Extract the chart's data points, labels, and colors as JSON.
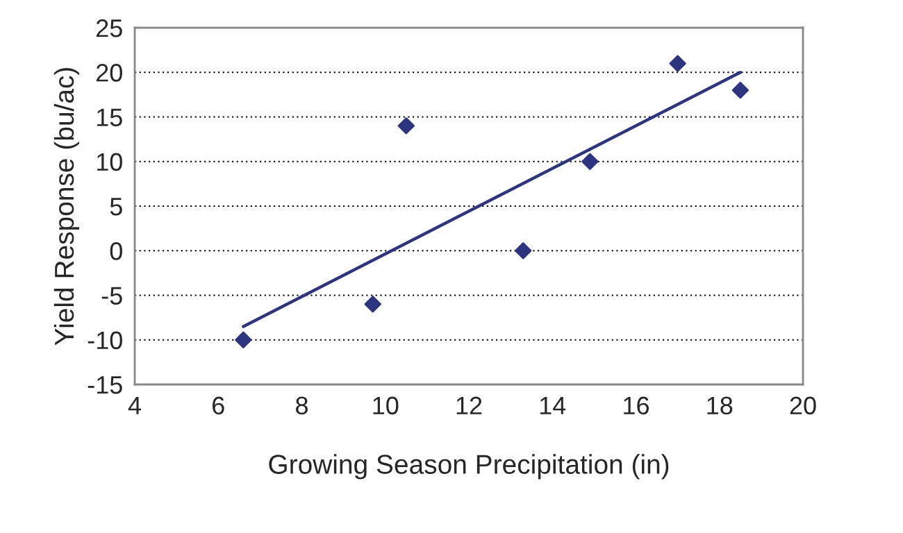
{
  "chart_data": {
    "type": "scatter",
    "xlabel": "Growing Season Precipitation (in)",
    "ylabel": "Yield Response (bu/ac)",
    "xlim": [
      4,
      20
    ],
    "xticks": [
      4,
      6,
      8,
      10,
      12,
      14,
      16,
      18,
      20
    ],
    "ylim": [
      -15,
      25
    ],
    "yticks": [
      -15,
      -10,
      -5,
      0,
      5,
      10,
      15,
      20,
      25
    ],
    "grid": "y",
    "legend": false,
    "series": [
      {
        "marker": "diamond",
        "color": "#2e3580",
        "x": [
          6.6,
          9.7,
          10.5,
          13.3,
          14.9,
          17.0,
          18.5
        ],
        "values": [
          -10,
          -6,
          14,
          0,
          10,
          21,
          18
        ]
      },
      {
        "type": "line",
        "color": "#2e3580",
        "x": [
          6.6,
          18.5
        ],
        "values": [
          -8.5,
          20
        ]
      }
    ]
  }
}
